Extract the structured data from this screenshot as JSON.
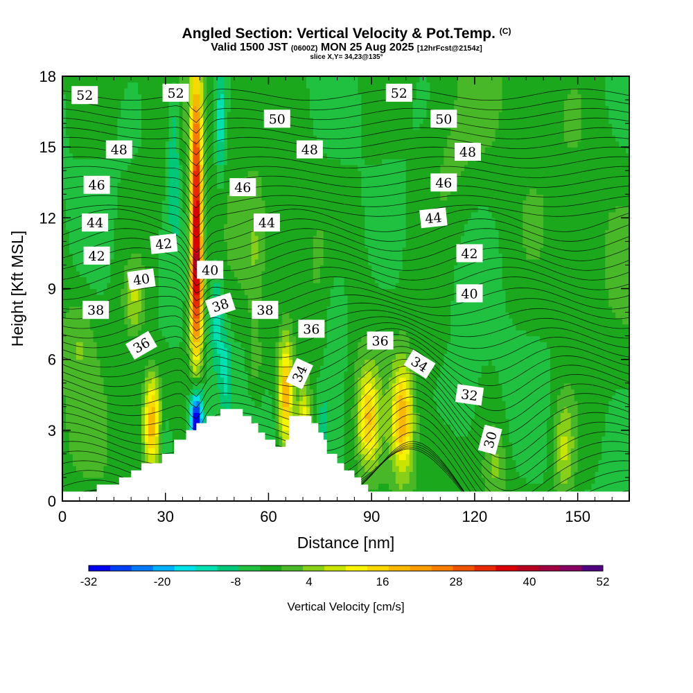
{
  "header": {
    "title_main": "Angled Section: Vertical Velocity & Pot.Temp.",
    "title_tag": "(C)",
    "valid_prefix": "Valid 1500 JST",
    "valid_zulu": "(0600Z)",
    "valid_date": "MON 25 Aug 2025",
    "forecast_tag": "[12hrFcst@2154z]",
    "slice_info": "slice X,Y= 34,23@135°"
  },
  "chart_data": {
    "type": "cross-section",
    "title": "Angled Section: Vertical Velocity & Pot.Temp.",
    "xlabel": "Distance [nm]",
    "ylabel": "Height [Kft MSL]",
    "xlim": [
      0,
      165
    ],
    "ylim": [
      0,
      18
    ],
    "xticks": [
      0,
      30,
      60,
      90,
      120,
      150
    ],
    "yticks": [
      0,
      3,
      6,
      9,
      12,
      15,
      18
    ],
    "colorbar": {
      "label": "Vertical Velocity [cm/s]",
      "tick_labels": [
        "-32",
        "-20",
        "-8",
        "4",
        "16",
        "28",
        "40",
        "52"
      ],
      "tick_values": [
        -32,
        -20,
        -8,
        4,
        16,
        28,
        40,
        52
      ],
      "range": [
        -32,
        52
      ],
      "step": 4,
      "colors": [
        "#0000f0",
        "#0040f5",
        "#0078f8",
        "#00b0f8",
        "#00e0e8",
        "#00e0b0",
        "#00c878",
        "#20c040",
        "#1ca81c",
        "#48b828",
        "#88d018",
        "#c8e400",
        "#f8f400",
        "#f8d800",
        "#f8b800",
        "#f89c00",
        "#f87c00",
        "#f05400",
        "#e82800",
        "#d80000",
        "#b80020",
        "#a00040",
        "#880060",
        "#500080"
      ]
    },
    "theta_labels": [
      {
        "text": "52",
        "x": 6.5,
        "y": 17.2
      },
      {
        "text": "52",
        "x": 33,
        "y": 17.3
      },
      {
        "text": "52",
        "x": 98,
        "y": 17.3
      },
      {
        "text": "50",
        "x": 62.5,
        "y": 16.2
      },
      {
        "text": "50",
        "x": 111,
        "y": 16.2
      },
      {
        "text": "48",
        "x": 16.5,
        "y": 14.9
      },
      {
        "text": "48",
        "x": 72,
        "y": 14.9
      },
      {
        "text": "48",
        "x": 118,
        "y": 14.8
      },
      {
        "text": "46",
        "x": 10,
        "y": 13.4
      },
      {
        "text": "46",
        "x": 52.5,
        "y": 13.3
      },
      {
        "text": "46",
        "x": 111,
        "y": 13.5
      },
      {
        "text": "44",
        "x": 9.5,
        "y": 11.8
      },
      {
        "text": "44",
        "x": 59.5,
        "y": 11.8
      },
      {
        "text": "44",
        "x": 108,
        "y": 12.0
      },
      {
        "text": "42",
        "x": 10,
        "y": 10.4
      },
      {
        "text": "42",
        "x": 29.5,
        "y": 10.9
      },
      {
        "text": "42",
        "x": 118.5,
        "y": 10.5
      },
      {
        "text": "40",
        "x": 23,
        "y": 9.4
      },
      {
        "text": "40",
        "x": 43,
        "y": 9.8
      },
      {
        "text": "40",
        "x": 118.5,
        "y": 8.8
      },
      {
        "text": "38",
        "x": 9.7,
        "y": 8.1
      },
      {
        "text": "38",
        "x": 46,
        "y": 8.3
      },
      {
        "text": "38",
        "x": 59,
        "y": 8.1
      },
      {
        "text": "36",
        "x": 23,
        "y": 6.6
      },
      {
        "text": "36",
        "x": 72.5,
        "y": 7.3
      },
      {
        "text": "36",
        "x": 92.5,
        "y": 6.8
      },
      {
        "text": "34",
        "x": 69,
        "y": 5.4
      },
      {
        "text": "34",
        "x": 104,
        "y": 5.8
      },
      {
        "text": "32",
        "x": 118.5,
        "y": 4.5
      },
      {
        "text": "30",
        "x": 124.5,
        "y": 2.6
      }
    ]
  }
}
